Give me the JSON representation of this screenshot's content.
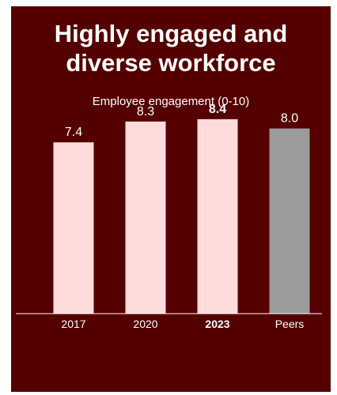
{
  "chart_data": {
    "type": "bar",
    "title": "Highly engaged and diverse workforce",
    "subtitle": "Employee engagement (0-10)",
    "categories": [
      "2017",
      "2020",
      "2023",
      "Peers"
    ],
    "values": [
      7.4,
      8.3,
      8.4,
      8.0
    ],
    "data_labels": [
      "7.4",
      "8.3",
      "8.4",
      "8.0"
    ],
    "highlighted_category": "2023",
    "ylim": [
      0,
      10
    ],
    "grid": false,
    "legend": "none"
  },
  "colors": {
    "background": "#540000",
    "bar": "#ffdbdb",
    "peer_bar": "#9b9b9b",
    "text": "#ffffff",
    "axis": "#ffffff"
  }
}
